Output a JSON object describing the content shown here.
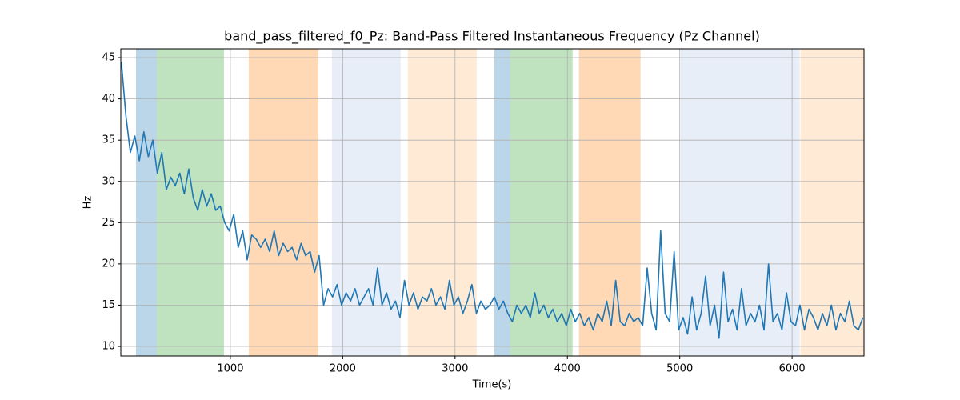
{
  "chart_data": {
    "type": "line",
    "title": "band_pass_filtered_f0_Pz: Band-Pass Filtered Instantaneous Frequency (Pz Channel)",
    "xlabel": "Time(s)",
    "ylabel": "Hz",
    "xlim": [
      25,
      6640
    ],
    "ylim": [
      8.84,
      46.07
    ],
    "xticks": [
      1000,
      2000,
      3000,
      4000,
      5000,
      6000
    ],
    "yticks": [
      10,
      15,
      20,
      25,
      30,
      35,
      40,
      45
    ],
    "grid": true,
    "spans": [
      {
        "start": 160,
        "end": 345,
        "color": "#1f77b4"
      },
      {
        "start": 345,
        "end": 943,
        "color": "#2ca02c"
      },
      {
        "start": 1164,
        "end": 1783,
        "color": "#ff7f0e"
      },
      {
        "start": 1904,
        "end": 2516,
        "color": "#aec7e8"
      },
      {
        "start": 2580,
        "end": 3192,
        "color": "#ffbb78"
      },
      {
        "start": 3349,
        "end": 3491,
        "color": "#1f77b4"
      },
      {
        "start": 3491,
        "end": 4046,
        "color": "#2ca02c"
      },
      {
        "start": 4103,
        "end": 4651,
        "color": "#ff7f0e"
      },
      {
        "start": 5007,
        "end": 6068,
        "color": "#aec7e8"
      },
      {
        "start": 6075,
        "end": 6640,
        "color": "#ffbb78"
      }
    ],
    "x": [
      30,
      70,
      110,
      150,
      190,
      230,
      270,
      310,
      350,
      390,
      430,
      470,
      510,
      550,
      590,
      630,
      670,
      710,
      750,
      790,
      830,
      870,
      910,
      950,
      990,
      1030,
      1070,
      1110,
      1150,
      1190,
      1230,
      1270,
      1310,
      1350,
      1390,
      1430,
      1470,
      1510,
      1550,
      1590,
      1630,
      1670,
      1710,
      1750,
      1790,
      1830,
      1870,
      1910,
      1950,
      1990,
      2030,
      2070,
      2110,
      2150,
      2190,
      2230,
      2270,
      2310,
      2350,
      2390,
      2430,
      2470,
      2510,
      2550,
      2590,
      2630,
      2670,
      2710,
      2750,
      2790,
      2830,
      2870,
      2910,
      2950,
      2990,
      3030,
      3070,
      3110,
      3150,
      3190,
      3230,
      3270,
      3310,
      3350,
      3390,
      3430,
      3470,
      3510,
      3550,
      3590,
      3630,
      3670,
      3710,
      3750,
      3790,
      3830,
      3870,
      3910,
      3950,
      3990,
      4030,
      4070,
      4110,
      4150,
      4190,
      4230,
      4270,
      4310,
      4350,
      4390,
      4430,
      4470,
      4510,
      4550,
      4590,
      4630,
      4670,
      4710,
      4750,
      4790,
      4830,
      4870,
      4910,
      4950,
      4990,
      5030,
      5070,
      5110,
      5150,
      5190,
      5230,
      5270,
      5310,
      5350,
      5390,
      5430,
      5470,
      5510,
      5550,
      5590,
      5630,
      5670,
      5710,
      5750,
      5790,
      5830,
      5870,
      5910,
      5950,
      5990,
      6030,
      6070,
      6110,
      6150,
      6190,
      6230,
      6270,
      6310,
      6350,
      6390,
      6430,
      6470,
      6510,
      6550,
      6590,
      6630
    ],
    "series": [
      {
        "name": "f0",
        "color": "#1f77b4",
        "values": [
          44.5,
          38,
          33.5,
          35.5,
          32.5,
          36,
          33,
          35,
          31,
          33.5,
          29,
          30.5,
          29.5,
          31,
          28.5,
          31.5,
          28,
          26.5,
          29,
          27,
          28.5,
          26.5,
          27,
          25,
          24,
          26,
          22,
          24,
          20.5,
          23.5,
          23,
          22,
          23,
          21.5,
          24,
          21,
          22.5,
          21.5,
          22,
          20.5,
          22.5,
          21,
          21.5,
          19,
          21,
          15,
          17,
          16,
          17.5,
          15,
          16.5,
          15.5,
          17,
          15,
          16,
          17,
          15,
          19.5,
          15,
          16.5,
          14.5,
          15.5,
          13.5,
          18,
          15,
          16.5,
          14.5,
          16,
          15.5,
          17,
          15,
          16,
          14.5,
          18,
          15,
          16,
          14,
          15.5,
          17.5,
          14,
          15.5,
          14.5,
          15,
          16,
          14.5,
          15.5,
          14,
          13,
          15,
          14,
          15,
          13.5,
          16.5,
          14,
          15,
          13.5,
          14.5,
          13,
          14,
          12.5,
          14.5,
          13,
          14,
          12.5,
          13.5,
          12,
          14,
          13,
          15.5,
          12.5,
          18,
          13,
          12.5,
          14,
          13,
          13.5,
          12.5,
          19.5,
          14,
          12,
          24,
          14,
          13,
          21.5,
          12,
          13.5,
          11.5,
          16,
          12,
          14,
          18.5,
          12.5,
          15,
          11,
          19,
          13,
          14.5,
          12,
          17,
          12.5,
          14,
          13,
          15,
          12,
          20,
          13,
          14,
          12,
          16.5,
          13,
          12.5,
          15,
          12,
          14.5,
          13.5,
          12,
          14,
          12.5,
          15,
          12,
          14,
          13,
          15.5,
          12.5,
          12,
          13.5
        ]
      }
    ]
  }
}
